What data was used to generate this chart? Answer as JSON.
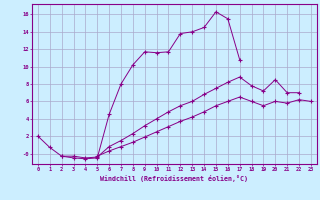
{
  "xlabel": "Windchill (Refroidissement éolien,°C)",
  "background_color": "#cceeff",
  "grid_color": "#aaaacc",
  "line_color": "#880088",
  "xlim": [
    -0.5,
    23.5
  ],
  "ylim": [
    -1.2,
    17.2
  ],
  "xticks": [
    0,
    1,
    2,
    3,
    4,
    5,
    6,
    7,
    8,
    9,
    10,
    11,
    12,
    13,
    14,
    15,
    16,
    17,
    18,
    19,
    20,
    21,
    22,
    23
  ],
  "yticks": [
    0,
    2,
    4,
    6,
    8,
    10,
    12,
    14,
    16
  ],
  "ytick_labels": [
    "-0",
    "2",
    "4",
    "6",
    "8",
    "10",
    "12",
    "14",
    "16"
  ],
  "series": [
    {
      "x": [
        0,
        1,
        2,
        3,
        4,
        5,
        6,
        7,
        8,
        9,
        10,
        11,
        12,
        13,
        14,
        15,
        16,
        17
      ],
      "y": [
        2.0,
        0.7,
        -0.3,
        -0.5,
        -0.6,
        -0.5,
        4.5,
        8.0,
        10.2,
        11.7,
        11.6,
        11.7,
        13.8,
        14.0,
        14.5,
        16.3,
        15.5,
        10.8
      ]
    },
    {
      "x": [
        2,
        3,
        4,
        5,
        6,
        7,
        8,
        9,
        10,
        11,
        12,
        13,
        14,
        15,
        16,
        17,
        18,
        19,
        20,
        21,
        22
      ],
      "y": [
        -0.3,
        -0.3,
        -0.5,
        -0.4,
        0.8,
        1.5,
        2.3,
        3.2,
        4.0,
        4.8,
        5.5,
        6.0,
        6.8,
        7.5,
        8.2,
        8.8,
        7.8,
        7.2,
        8.5,
        7.0,
        7.0
      ]
    },
    {
      "x": [
        5,
        6,
        7,
        8,
        9,
        10,
        11,
        12,
        13,
        14,
        15,
        16,
        17,
        18,
        19,
        20,
        21,
        22,
        23
      ],
      "y": [
        -0.3,
        0.3,
        0.8,
        1.3,
        1.9,
        2.5,
        3.1,
        3.7,
        4.2,
        4.8,
        5.5,
        6.0,
        6.5,
        6.0,
        5.5,
        6.0,
        5.8,
        6.2,
        6.0
      ]
    }
  ]
}
